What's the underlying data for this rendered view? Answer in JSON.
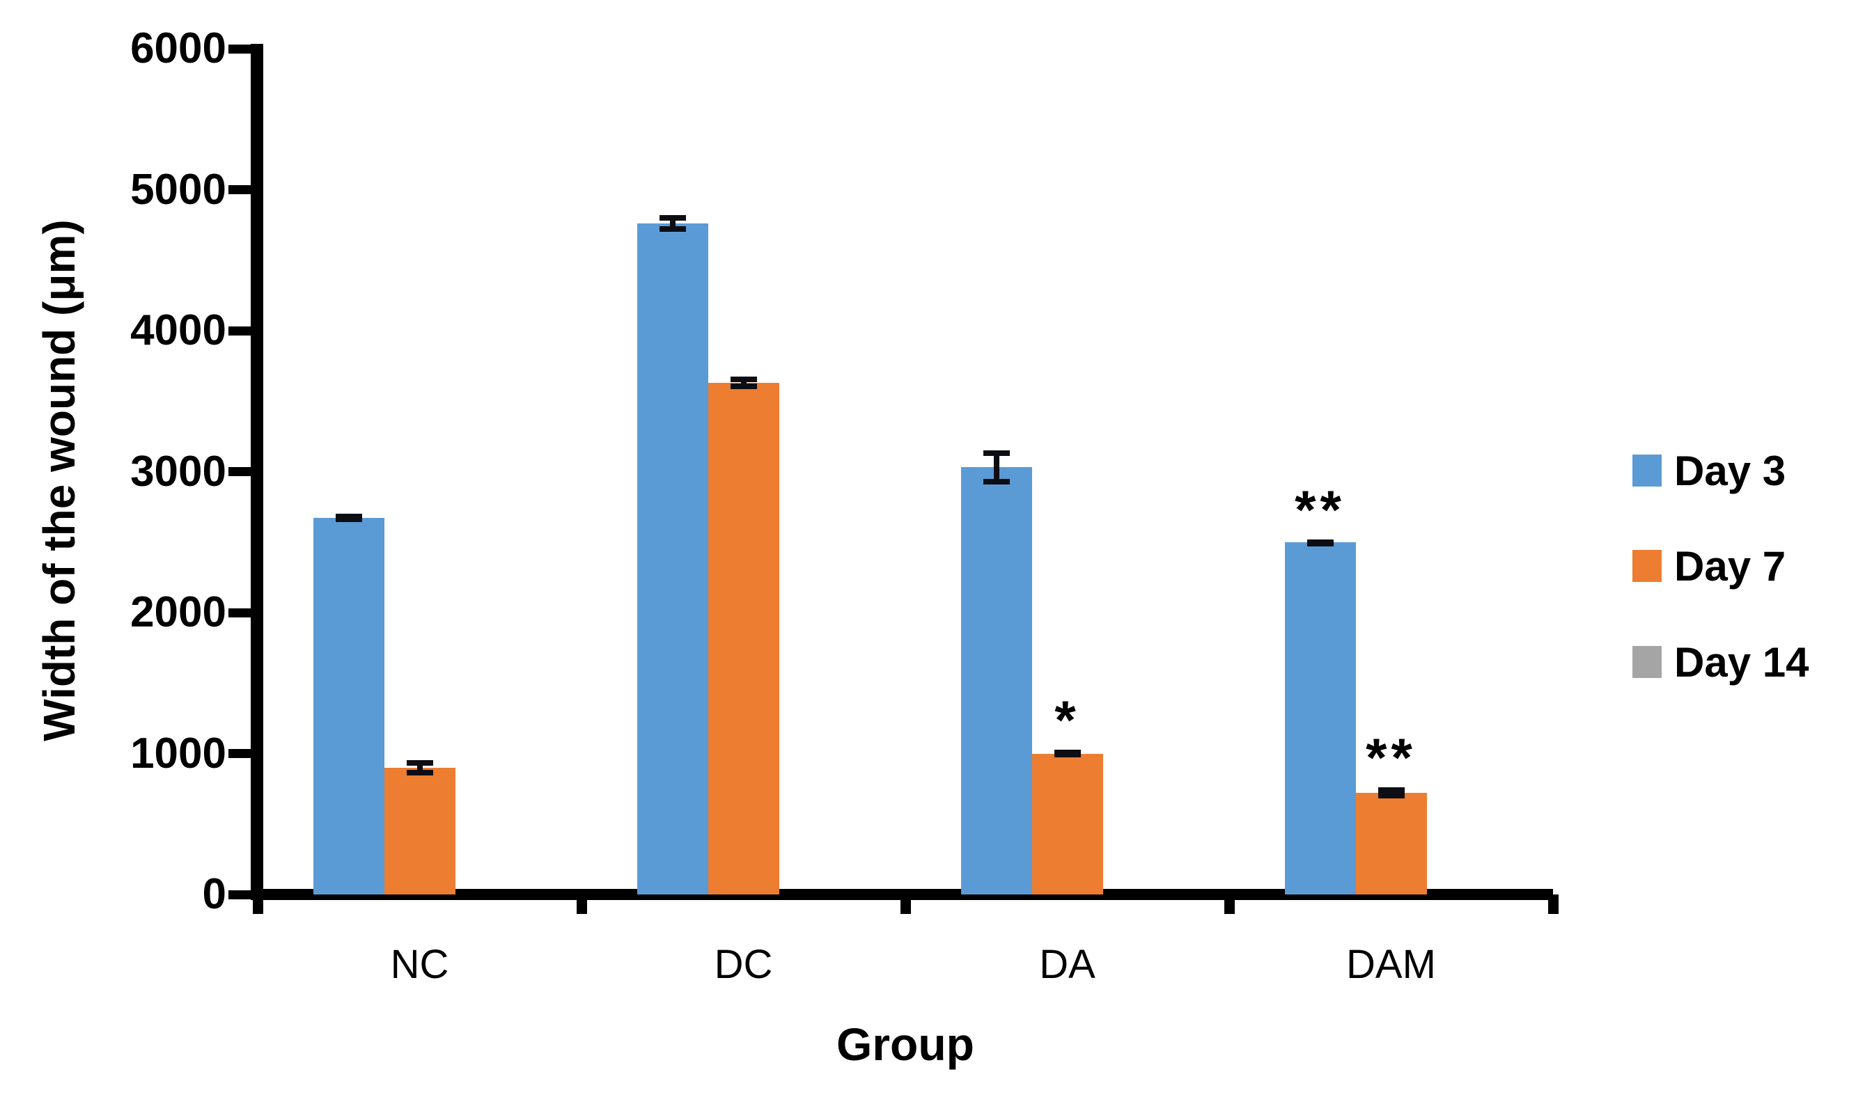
{
  "figure": {
    "background": "#ffffff",
    "axis_color": "#000000"
  },
  "chart_data": {
    "type": "bar",
    "title": "",
    "xlabel": "Group",
    "ylabel": "Width of the wound (μm)",
    "categories": [
      "NC",
      "DC",
      "DA",
      "DAM"
    ],
    "series": [
      {
        "name": "Day 3",
        "color": "#5B9BD5",
        "values": [
          2670,
          4760,
          3030,
          2500
        ],
        "errors": [
          30,
          60,
          120,
          20
        ],
        "annotations": [
          "",
          "",
          "",
          "**"
        ]
      },
      {
        "name": "Day 7",
        "color": "#ED7D31",
        "values": [
          900,
          3630,
          1000,
          720
        ],
        "errors": [
          55,
          45,
          25,
          40
        ],
        "annotations": [
          "",
          "",
          "*",
          "**"
        ]
      },
      {
        "name": "Day 14",
        "color": "#A5A5A5",
        "values": [
          0,
          0,
          0,
          0
        ],
        "errors": [
          0,
          0,
          0,
          0
        ],
        "annotations": [
          "",
          "",
          "",
          ""
        ]
      }
    ],
    "ylim": [
      0,
      6000
    ],
    "yticks": [
      0,
      1000,
      2000,
      3000,
      4000,
      5000,
      6000
    ],
    "grid": false,
    "legend_position": "right",
    "error_bar_color": "#0d0d14"
  }
}
